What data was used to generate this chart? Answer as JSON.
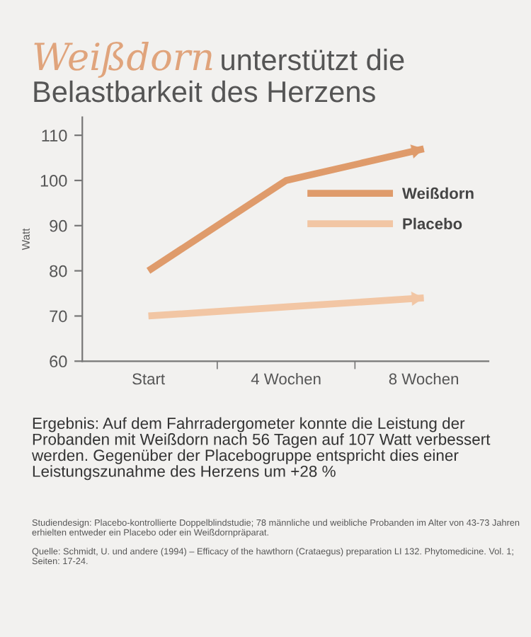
{
  "chart_data": {
    "type": "line",
    "title": "Weißdorn unterstützt die Belastbarkeit des Herzens",
    "ylabel": "Watt",
    "categories": [
      "Start",
      "4 Wochen",
      "8 Wochen"
    ],
    "series": [
      {
        "name": "Weißdorn",
        "color": "#df9b6b",
        "values": [
          80,
          100,
          107
        ]
      },
      {
        "name": "Placebo",
        "color": "#f2c6a4",
        "values": [
          70,
          72,
          74
        ]
      }
    ],
    "ylim": [
      60,
      114
    ],
    "yticks": [
      60,
      70,
      80,
      90,
      100,
      110
    ],
    "grid": false,
    "legend": "right",
    "marker": "none",
    "line_style": "solid",
    "annotations": [
      "Ergebnis: Auf dem Fahrradergometer konnte die Leistung der Probanden mit Weißdorn nach 56 Tagen auf 107 Watt verbessert werden. Gegenüber der Placebogruppe entspricht dies einer Leistungszunahme des Herzens um +28 %",
      "Studiendesign: Placebo-kontrollierte Doppelblindstudie; 78 männliche und weibliche Probanden im Alter von 43-73 Jahren erhielten entweder ein Placebo oder ein Weißdornpräparat.",
      "Quelle: Schmidt, U. und andere (1994) – Efficacy of the hawthorn (Crataegus) preparation LI 132. Phytomedicine. Vol. 1; Seiten: 17-24."
    ]
  }
}
